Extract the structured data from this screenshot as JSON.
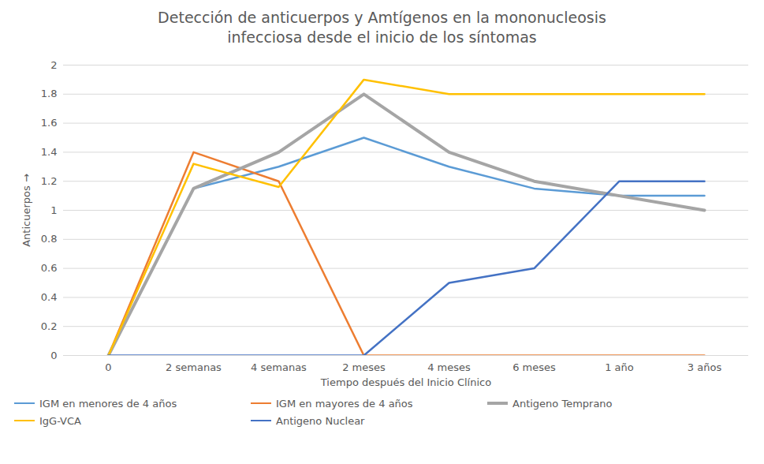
{
  "chart_data": {
    "type": "line",
    "title": [
      "Detección de anticuerpos y Amtígenos en la mononucleosis",
      "infecciosa desde el inicio de los síntomas"
    ],
    "x_label": "Tiempo después del Inicio Clínico",
    "y_label": "Anticuerpos",
    "categories": [
      "0",
      "2 semanas",
      "4 semanas",
      "2 meses",
      "4 meses",
      "6 meses",
      "1 año",
      "3 años"
    ],
    "series": [
      {
        "name": "IGM en menores de 4 años",
        "color": "#5b9bd5",
        "values": [
          0,
          1.15,
          1.3,
          1.5,
          1.3,
          1.15,
          1.1,
          1.1
        ]
      },
      {
        "name": "IGM en mayores de 4 años",
        "color": "#ed7d31",
        "values": [
          0,
          1.4,
          1.2,
          0,
          0,
          0,
          0,
          0
        ]
      },
      {
        "name": "Antigeno Temprano",
        "color": "#a5a5a5",
        "line_style": "thick",
        "values": [
          0,
          1.15,
          1.4,
          1.8,
          1.4,
          1.2,
          1.1,
          1.0
        ]
      },
      {
        "name": "IgG-VCA",
        "color": "#ffc000",
        "values": [
          0,
          1.32,
          1.16,
          1.9,
          1.8,
          1.8,
          1.8,
          1.8
        ]
      },
      {
        "name": "Antigeno Nuclear",
        "color": "#4472c4",
        "values": [
          0,
          0,
          0,
          0,
          0.5,
          0.6,
          1.2,
          1.2
        ]
      }
    ],
    "ylim": [
      0,
      2
    ],
    "yticks": [
      0,
      0.2,
      0.4,
      0.6,
      0.8,
      1,
      1.2,
      1.4,
      1.6,
      1.8,
      2
    ],
    "grid": true,
    "legend": "bottom"
  }
}
